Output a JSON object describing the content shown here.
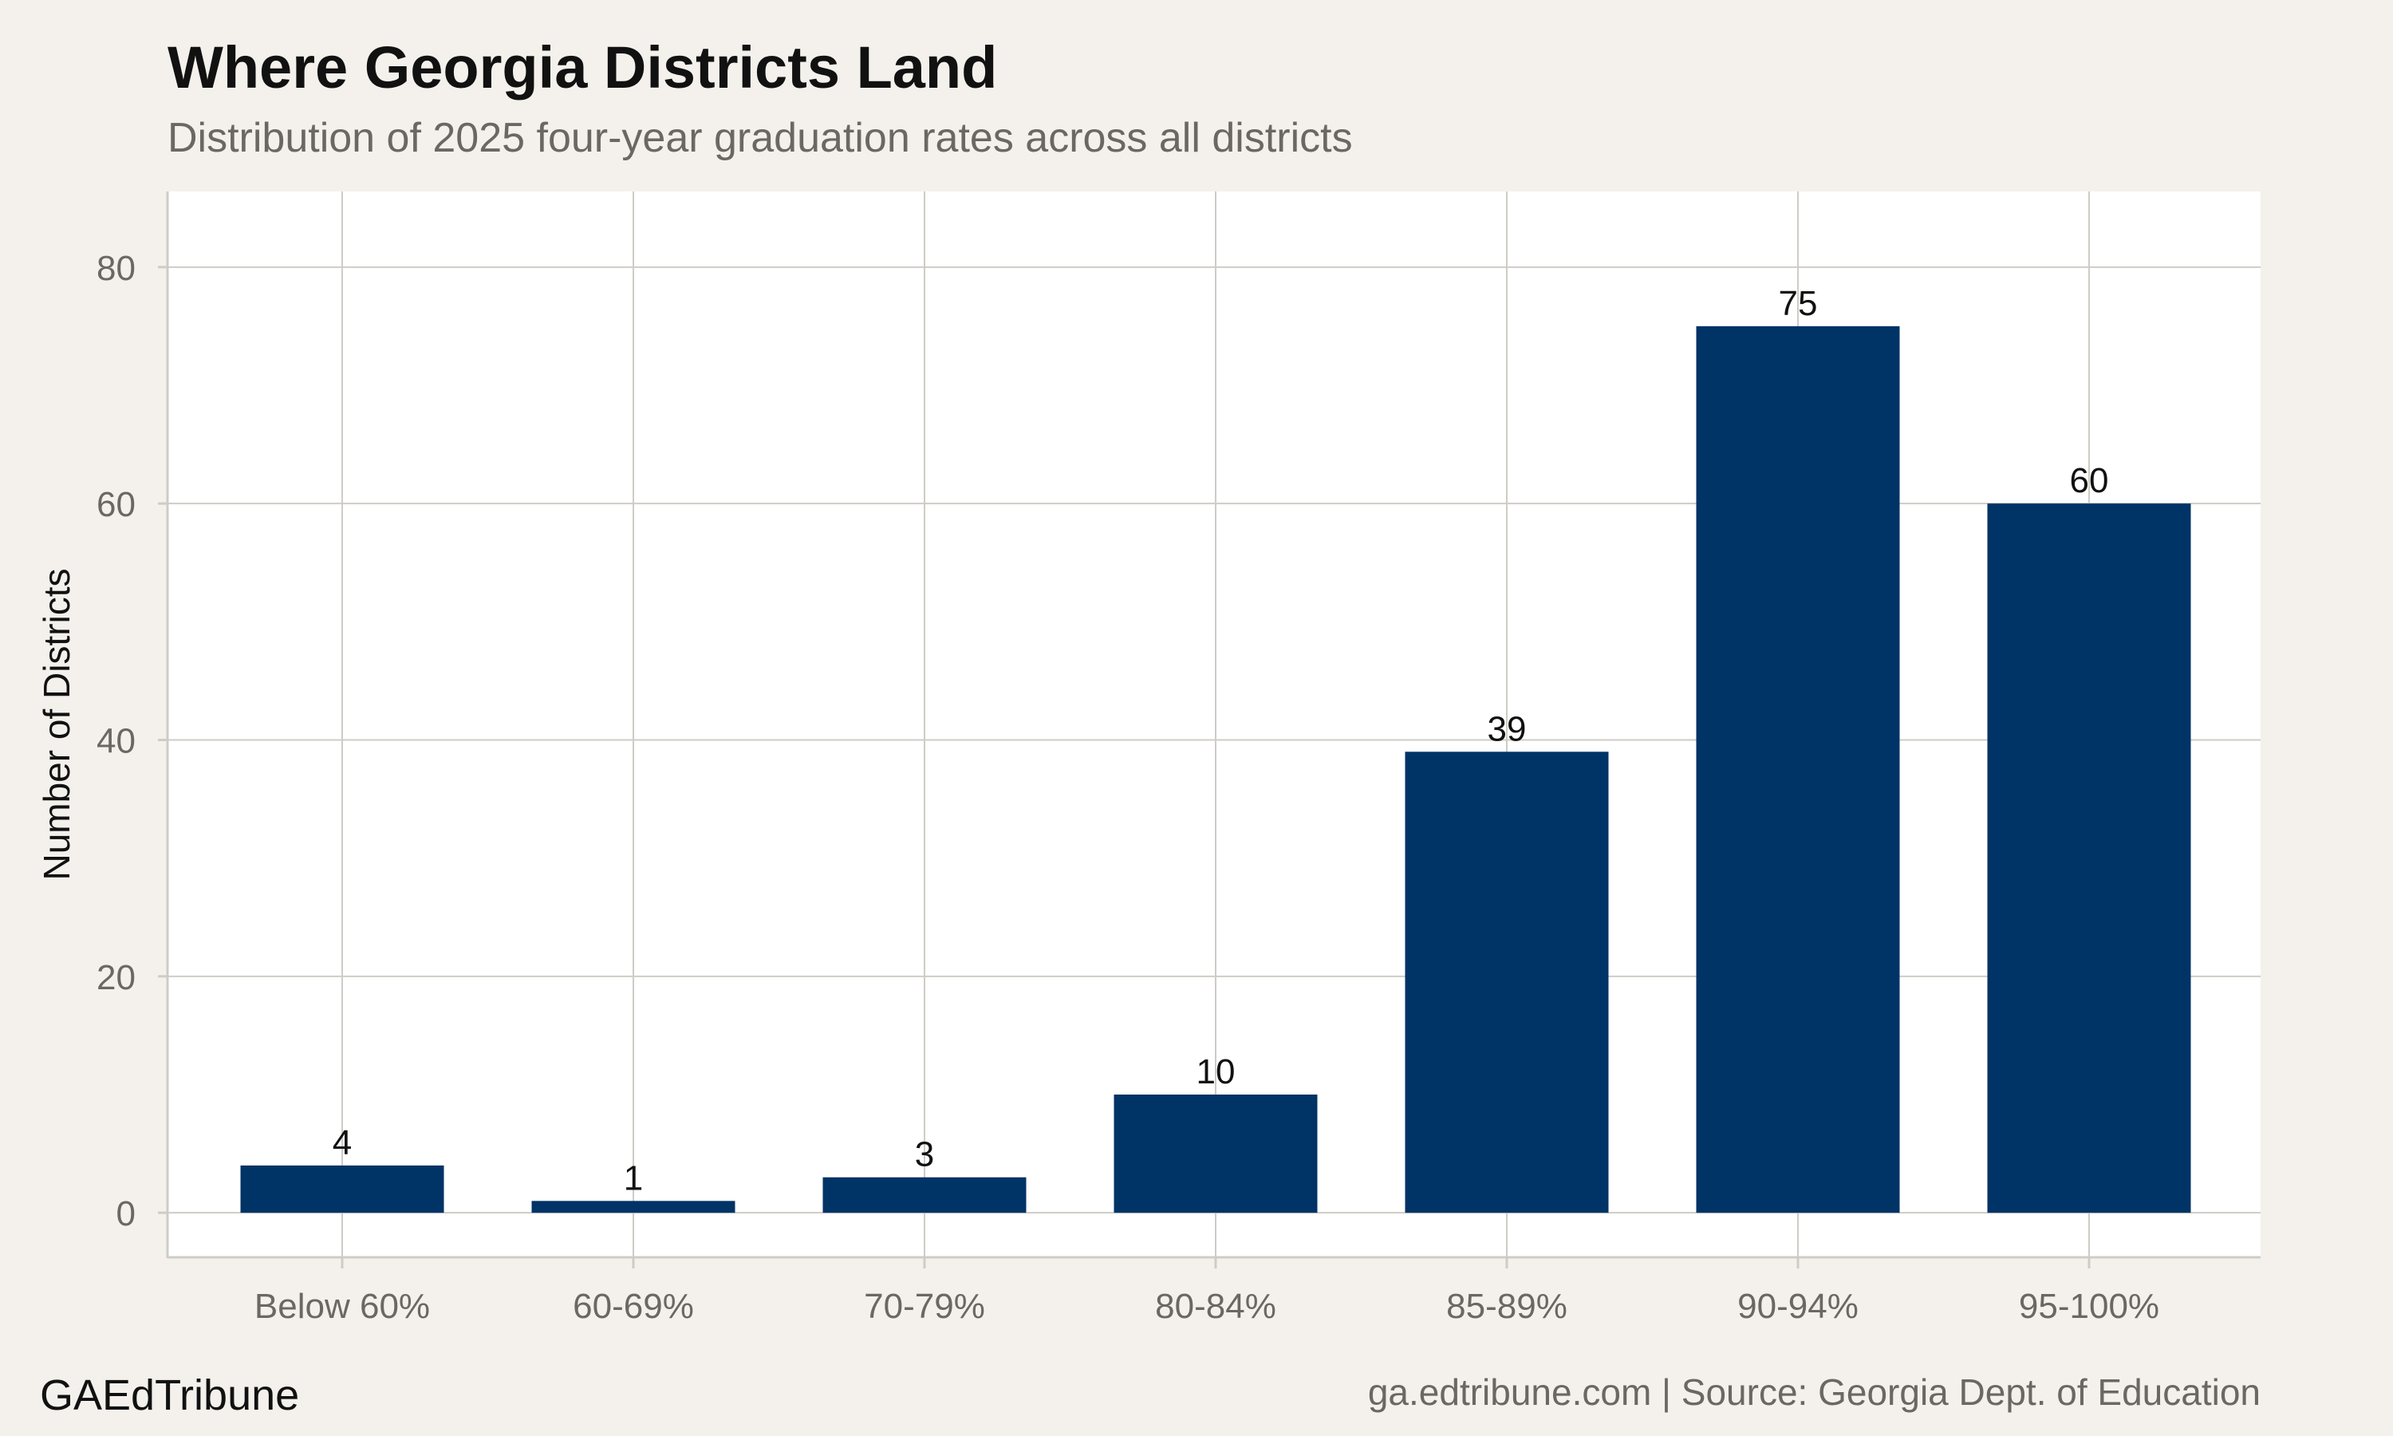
{
  "header": {
    "title": "Where Georgia Districts Land",
    "subtitle": "Distribution of 2025 four-year graduation rates across all districts"
  },
  "footer": {
    "brand": "GAEdTribune",
    "source": "ga.edtribune.com | Source: Georgia Dept. of Education"
  },
  "colors": {
    "background": "#f4f1ec",
    "panel": "#ffffff",
    "grid": "#cfccc6",
    "bar": "#003366"
  },
  "chart_data": {
    "type": "bar",
    "title": "Where Georgia Districts Land",
    "subtitle": "Distribution of 2025 four-year graduation rates across all districts",
    "xlabel": "",
    "ylabel": "Number of Districts",
    "categories": [
      "Below 60%",
      "60-69%",
      "70-79%",
      "80-84%",
      "85-89%",
      "90-94%",
      "95-100%"
    ],
    "values": [
      4,
      1,
      3,
      10,
      39,
      75,
      60
    ],
    "data_labels": [
      "4",
      "1",
      "3",
      "10",
      "39",
      "75",
      "60"
    ],
    "ylim": [
      -3.7,
      86.4
    ],
    "yticks": [
      0,
      20,
      40,
      60,
      80
    ],
    "ytick_labels": [
      "0",
      "20",
      "40",
      "60",
      "80"
    ],
    "grid": true,
    "legend": "none"
  }
}
